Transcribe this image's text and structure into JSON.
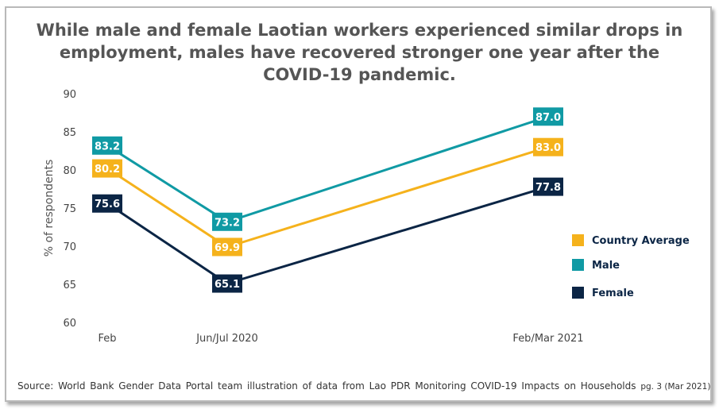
{
  "title_lines": [
    "While male and female Laotian workers experienced similar drops in",
    "employment, males have recovered stronger one year after the",
    "COVID-19 pandemic."
  ],
  "source": {
    "text": "Source: World Bank Gender Data Portal team illustration of data from Lao PDR Monitoring COVID-19 Impacts on Households",
    "ref": "pg. 3 (Mar 2021)"
  },
  "chart_data": {
    "type": "line",
    "title": "While male and female Laotian workers experienced similar drops in employment, males have recovered stronger one year after the COVID-19 pandemic.",
    "xlabel": "",
    "ylabel": "% of respondents",
    "ylim": [
      60,
      90
    ],
    "yticks": [
      "60",
      "65",
      "70",
      "75",
      "80",
      "85",
      "90"
    ],
    "categories": [
      "Feb",
      "Jun/Jul 2020",
      "Feb/Mar 2021"
    ],
    "grid": false,
    "legend_position": "right",
    "series": [
      {
        "name": "Country Average",
        "color": "#f5b21c",
        "values": [
          80.2,
          69.9,
          83.0
        ],
        "labels": [
          "80.2",
          "69.9",
          "83.0"
        ]
      },
      {
        "name": "Male",
        "color": "#109aa4",
        "values": [
          83.2,
          73.2,
          87.0
        ],
        "labels": [
          "83.2",
          "73.2",
          "87.0"
        ]
      },
      {
        "name": "Female",
        "color": "#0b2545",
        "values": [
          75.6,
          65.1,
          77.8
        ],
        "labels": [
          "75.6",
          "65.1",
          "77.8"
        ]
      }
    ]
  }
}
